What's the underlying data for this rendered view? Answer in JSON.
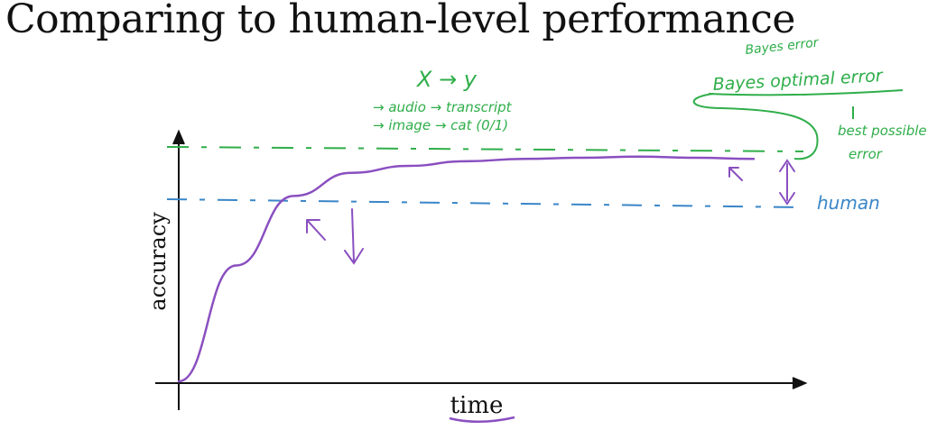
{
  "slide": {
    "title": "Comparing to human-level performance"
  },
  "chart_data": {
    "type": "line",
    "title": "Comparing to human-level performance",
    "xlabel": "time",
    "ylabel": "accuracy",
    "series": [
      {
        "name": "",
        "x": [
          0,
          0.1,
          0.2,
          0.3,
          0.4,
          0.5,
          0.6,
          0.7,
          0.8,
          0.9,
          1.0
        ],
        "y": [
          0,
          0.5,
          0.8,
          0.9,
          0.93,
          0.95,
          0.96,
          0.965,
          0.97,
          0.965,
          0.96
        ]
      }
    ],
    "reference_lines": [
      {
        "label": "Bayes optimal error",
        "level": 1.0,
        "color": "#2fae4a",
        "style": "dashed"
      },
      {
        "label": "human",
        "level": 0.8,
        "color": "#3a86c8",
        "style": "dashed"
      }
    ]
  },
  "annotations": {
    "mapping_title": "X → y",
    "mapping_audio": "→ audio → transcript",
    "mapping_image": "→ image → cat (0/1)",
    "bayes_error_small": "Bayes error",
    "bayes_optimal_error": "Bayes optimal error",
    "best_possible_error_line1": "best possible",
    "best_possible_error_line2": "error",
    "human_label": "human"
  },
  "colors": {
    "curve": "#8a4fc0",
    "bayes_line": "#2fae4a",
    "human_line": "#3a86c8",
    "axes": "#111111",
    "annotation_green": "#2fae4a"
  }
}
